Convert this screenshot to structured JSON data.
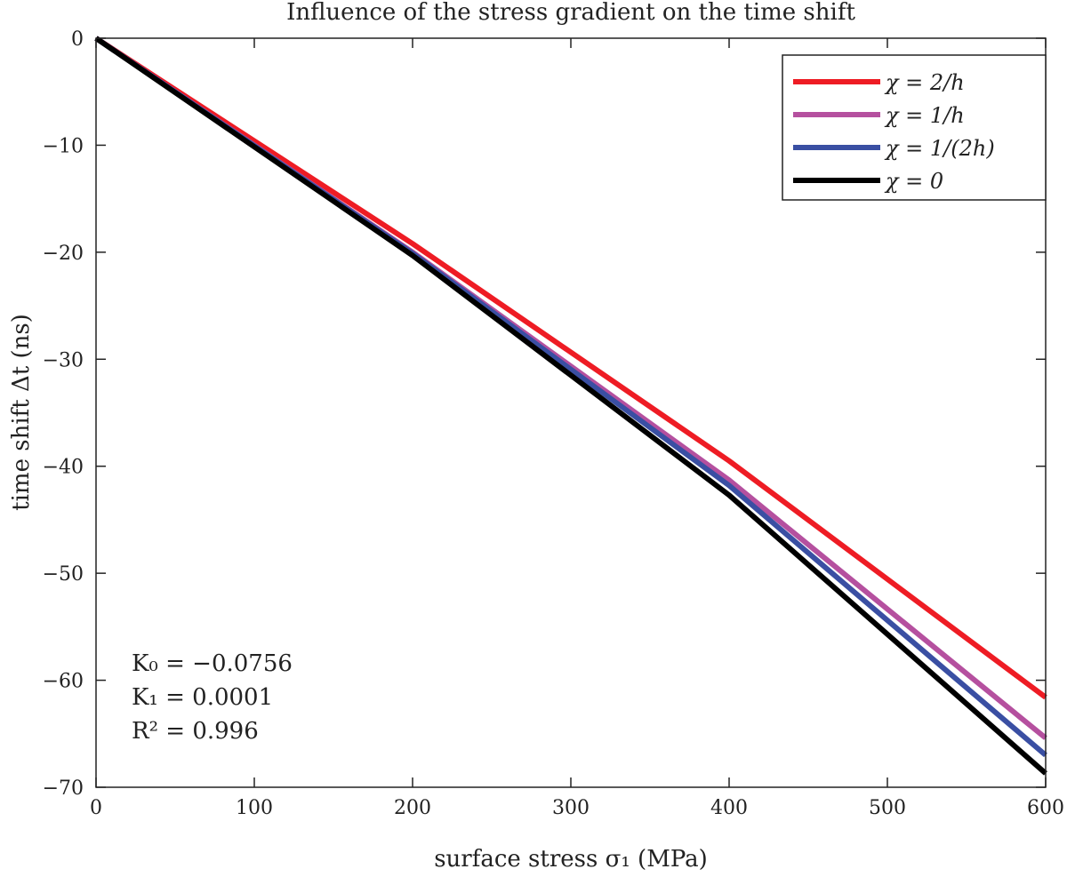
{
  "chart_data": {
    "type": "line",
    "title": "Influence of the stress gradient on the time shift",
    "xlabel": "surface stress σ₁ (MPa)",
    "ylabel": "time shift Δt (ns)",
    "xlim": [
      0,
      600
    ],
    "ylim": [
      -70,
      0
    ],
    "xticks": [
      0,
      100,
      200,
      300,
      400,
      500,
      600
    ],
    "yticks": [
      0,
      -10,
      -20,
      -30,
      -40,
      -50,
      -60,
      -70
    ],
    "grid": false,
    "legend_position": "top-right",
    "x": [
      0,
      200,
      400,
      600
    ],
    "series": [
      {
        "name": "χ = 2/h",
        "color": "#ee1c24",
        "values": [
          0,
          -19.2,
          -39.5,
          -61.6
        ]
      },
      {
        "name": "χ = 1/h",
        "color": "#b5509f",
        "values": [
          0,
          -20.0,
          -41.3,
          -65.4
        ]
      },
      {
        "name": "χ = 1/(2h)",
        "color": "#3a4fa3",
        "values": [
          0,
          -20.1,
          -41.8,
          -67.0
        ]
      },
      {
        "name": "χ = 0",
        "color": "#000000",
        "values": [
          0,
          -20.3,
          -42.7,
          -68.7
        ]
      }
    ],
    "annotations": [
      "K₀ = −0.0756",
      "K₁ = 0.0001",
      "R² = 0.996"
    ]
  }
}
